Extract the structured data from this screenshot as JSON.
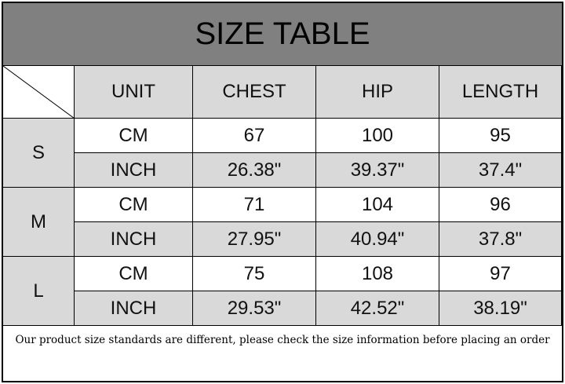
{
  "title": "SIZE TABLE",
  "headers": [
    "UNIT",
    "CHEST",
    "HIP",
    "LENGTH"
  ],
  "sizes": [
    {
      "size": "S",
      "rows": [
        {
          "unit": "CM",
          "chest": "67",
          "hip": "100",
          "length": "95"
        },
        {
          "unit": "INCH",
          "chest": "26.38\"",
          "hip": "39.37\"",
          "length": "37.4\""
        }
      ]
    },
    {
      "size": "M",
      "rows": [
        {
          "unit": "CM",
          "chest": "71",
          "hip": "104",
          "length": "96"
        },
        {
          "unit": "INCH",
          "chest": "27.95\"",
          "hip": "40.94\"",
          "length": "37.8\""
        }
      ]
    },
    {
      "size": "L",
      "rows": [
        {
          "unit": "CM",
          "chest": "75",
          "hip": "108",
          "length": "97"
        },
        {
          "unit": "INCH",
          "chest": "29.53\"",
          "hip": "42.52\"",
          "length": "38.19\""
        }
      ]
    }
  ],
  "note": "Our product size standards are different, please check the size information before placing an order",
  "colors": {
    "title_bg": "#808080",
    "cell_gray": "#d9d9d9",
    "cell_white": "#ffffff"
  }
}
